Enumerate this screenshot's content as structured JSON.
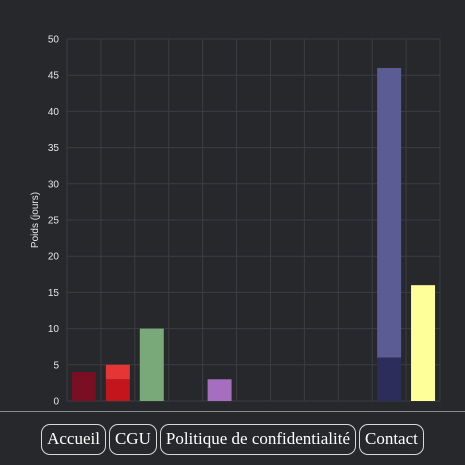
{
  "chart_data": {
    "type": "bar",
    "stacked": true,
    "ylabel": "Poids (jours)",
    "xlabel": "",
    "ylim": [
      0,
      50
    ],
    "yticks": [
      0,
      5,
      10,
      15,
      20,
      25,
      30,
      35,
      40,
      45,
      50
    ],
    "grid": true,
    "category_count": 11,
    "stacks": [
      {
        "index": 0,
        "segments": [
          {
            "value": 4,
            "color": "#7a0e23"
          }
        ]
      },
      {
        "index": 1,
        "segments": [
          {
            "value": 3,
            "color": "#c3151b"
          },
          {
            "value": 2,
            "color": "#e53535"
          }
        ]
      },
      {
        "index": 2,
        "segments": [
          {
            "value": 10,
            "color": "#79a979"
          }
        ]
      },
      {
        "index": 4,
        "segments": [
          {
            "value": 3,
            "color": "#a66ebe"
          }
        ]
      },
      {
        "index": 9,
        "segments": [
          {
            "value": 6,
            "color": "#2c2d5a"
          },
          {
            "value": 40,
            "color": "#5a5c93"
          }
        ]
      },
      {
        "index": 10,
        "segments": [
          {
            "value": 16,
            "color": "#ffff99"
          }
        ]
      }
    ]
  },
  "colors": {
    "background": "#27282c",
    "grid": "#3b3d42",
    "text": "#e6e6e6",
    "footer_border": "#d8d8d8"
  },
  "footer": {
    "links": [
      {
        "label": "Accueil"
      },
      {
        "label": "CGU"
      },
      {
        "label": "Politique de confidentialité"
      },
      {
        "label": "Contact"
      }
    ]
  }
}
